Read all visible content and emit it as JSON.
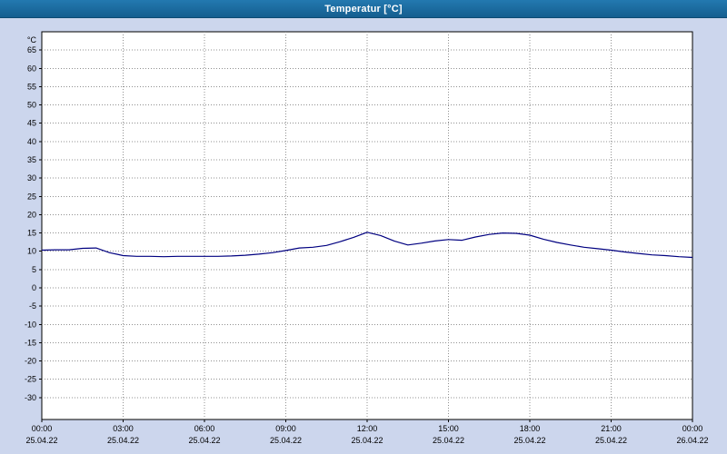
{
  "window": {
    "title": "Temperatur [°C]"
  },
  "colors": {
    "header_bg_top": "#2379b0",
    "header_bg_bottom": "#155e8f",
    "page_bg": "#ccd6ed",
    "plot_bg": "#ffffff",
    "plot_border": "#000000",
    "grid_color": "#909090",
    "line_color": "#000080",
    "tick_text": "#000000"
  },
  "chart_data": {
    "type": "line",
    "title": "Temperatur [°C]",
    "ylabel": "°C",
    "xlabel": "",
    "grid": true,
    "legend": "none",
    "ylim": [
      -36,
      70
    ],
    "xlim": [
      0,
      24
    ],
    "ytick_step": 5,
    "yticks": [
      65,
      60,
      55,
      50,
      45,
      40,
      35,
      30,
      25,
      20,
      15,
      10,
      5,
      0,
      -5,
      -10,
      -15,
      -20,
      -25,
      -30
    ],
    "xticks": [
      {
        "hour": 0,
        "time": "00:00",
        "date": "25.04.22"
      },
      {
        "hour": 3,
        "time": "03:00",
        "date": "25.04.22"
      },
      {
        "hour": 6,
        "time": "06:00",
        "date": "25.04.22"
      },
      {
        "hour": 9,
        "time": "09:00",
        "date": "25.04.22"
      },
      {
        "hour": 12,
        "time": "12:00",
        "date": "25.04.22"
      },
      {
        "hour": 15,
        "time": "15:00",
        "date": "25.04.22"
      },
      {
        "hour": 18,
        "time": "18:00",
        "date": "25.04.22"
      },
      {
        "hour": 21,
        "time": "21:00",
        "date": "25.04.22"
      },
      {
        "hour": 24,
        "time": "00:00",
        "date": "26.04.22"
      }
    ],
    "series": [
      {
        "name": "Temperatur",
        "x_hours": [
          0,
          0.5,
          1,
          1.5,
          2,
          2.5,
          3,
          3.5,
          4,
          4.5,
          5,
          5.5,
          6,
          6.5,
          7,
          7.5,
          8,
          8.5,
          9,
          9.5,
          10,
          10.5,
          11,
          11.5,
          12,
          12.5,
          13,
          13.5,
          14,
          14.5,
          15,
          15.5,
          16,
          16.5,
          17,
          17.5,
          18,
          18.5,
          19,
          19.5,
          20,
          20.5,
          21,
          21.5,
          22,
          22.5,
          23,
          23.5,
          24
        ],
        "values": [
          10.3,
          10.4,
          10.4,
          10.8,
          10.9,
          9.6,
          8.8,
          8.6,
          8.6,
          8.5,
          8.6,
          8.6,
          8.6,
          8.6,
          8.7,
          8.9,
          9.2,
          9.6,
          10.2,
          10.9,
          11.1,
          11.6,
          12.6,
          13.8,
          15.2,
          14.3,
          12.8,
          11.7,
          12.2,
          12.8,
          13.2,
          13.0,
          13.9,
          14.6,
          15.0,
          14.9,
          14.4,
          13.3,
          12.4,
          11.7,
          11.1,
          10.7,
          10.3,
          9.8,
          9.4,
          9.0,
          8.8,
          8.5,
          8.3
        ]
      }
    ]
  }
}
